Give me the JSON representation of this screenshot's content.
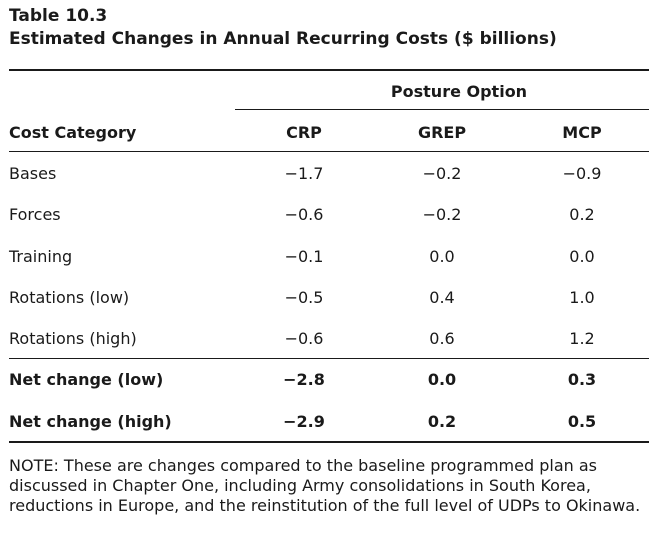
{
  "table": {
    "number": "Table 10.3",
    "title": "Estimated Changes in Annual Recurring Costs ($ billions)",
    "spanner": "Posture Option",
    "columns": [
      "Cost Category",
      "CRP",
      "GREP",
      "MCP"
    ],
    "rows": [
      {
        "label": "Bases",
        "crp": "−1.7",
        "grep": "−0.2",
        "mcp": "−0.9"
      },
      {
        "label": "Forces",
        "crp": "−0.6",
        "grep": "−0.2",
        "mcp": "0.2"
      },
      {
        "label": "Training",
        "crp": "−0.1",
        "grep": "0.0",
        "mcp": "0.0"
      },
      {
        "label": "Rotations (low)",
        "crp": "−0.5",
        "grep": "0.4",
        "mcp": "1.0"
      },
      {
        "label": "Rotations (high)",
        "crp": "−0.6",
        "grep": "0.6",
        "mcp": "1.2"
      }
    ],
    "totals": [
      {
        "label": "Net change (low)",
        "crp": "−2.8",
        "grep": "0.0",
        "mcp": "0.3"
      },
      {
        "label": "Net change (high)",
        "crp": "−2.9",
        "grep": "0.2",
        "mcp": "0.5"
      }
    ],
    "note": "NOTE: These are changes compared to the baseline programmed plan as discussed in Chapter One, including Army consolidations in South Korea, reductions in Europe, and the reinstitution of the full level of UDPs to Okinawa."
  }
}
